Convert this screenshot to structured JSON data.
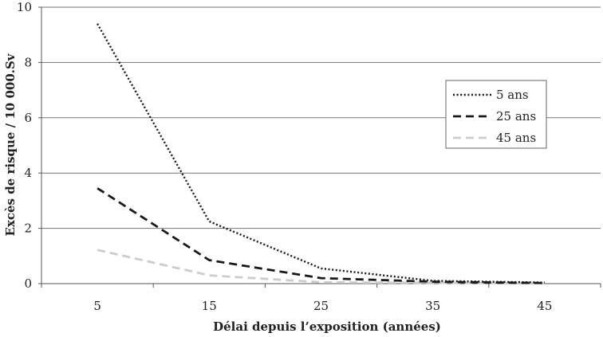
{
  "chart_data": {
    "type": "line",
    "title": "",
    "xlabel": "Délai depuis l’exposition (années)",
    "ylabel": "Excès de risque / 10 000.Sv",
    "x": [
      5,
      15,
      25,
      35,
      45
    ],
    "x_tick_labels": [
      "5",
      "15",
      "25",
      "35",
      "45"
    ],
    "y_tick_labels": [
      "0",
      "2",
      "4",
      "6",
      "8",
      "10"
    ],
    "y_ticks": [
      0,
      2,
      4,
      6,
      8,
      10
    ],
    "ylim": [
      0,
      10
    ],
    "grid": "horizontal",
    "legend_position": "right",
    "series": [
      {
        "name": "5 ans",
        "values": [
          9.4,
          2.25,
          0.55,
          0.1,
          0.04
        ],
        "color": "#1a1a1a",
        "style": "dotted"
      },
      {
        "name": "25 ans",
        "values": [
          3.45,
          0.85,
          0.2,
          0.07,
          0.02
        ],
        "color": "#1a1a1a",
        "style": "dashed"
      },
      {
        "name": "45 ans",
        "values": [
          1.22,
          0.3,
          0.05,
          0.03,
          0.01
        ],
        "color": "#cccccc",
        "style": "dashed"
      }
    ]
  }
}
